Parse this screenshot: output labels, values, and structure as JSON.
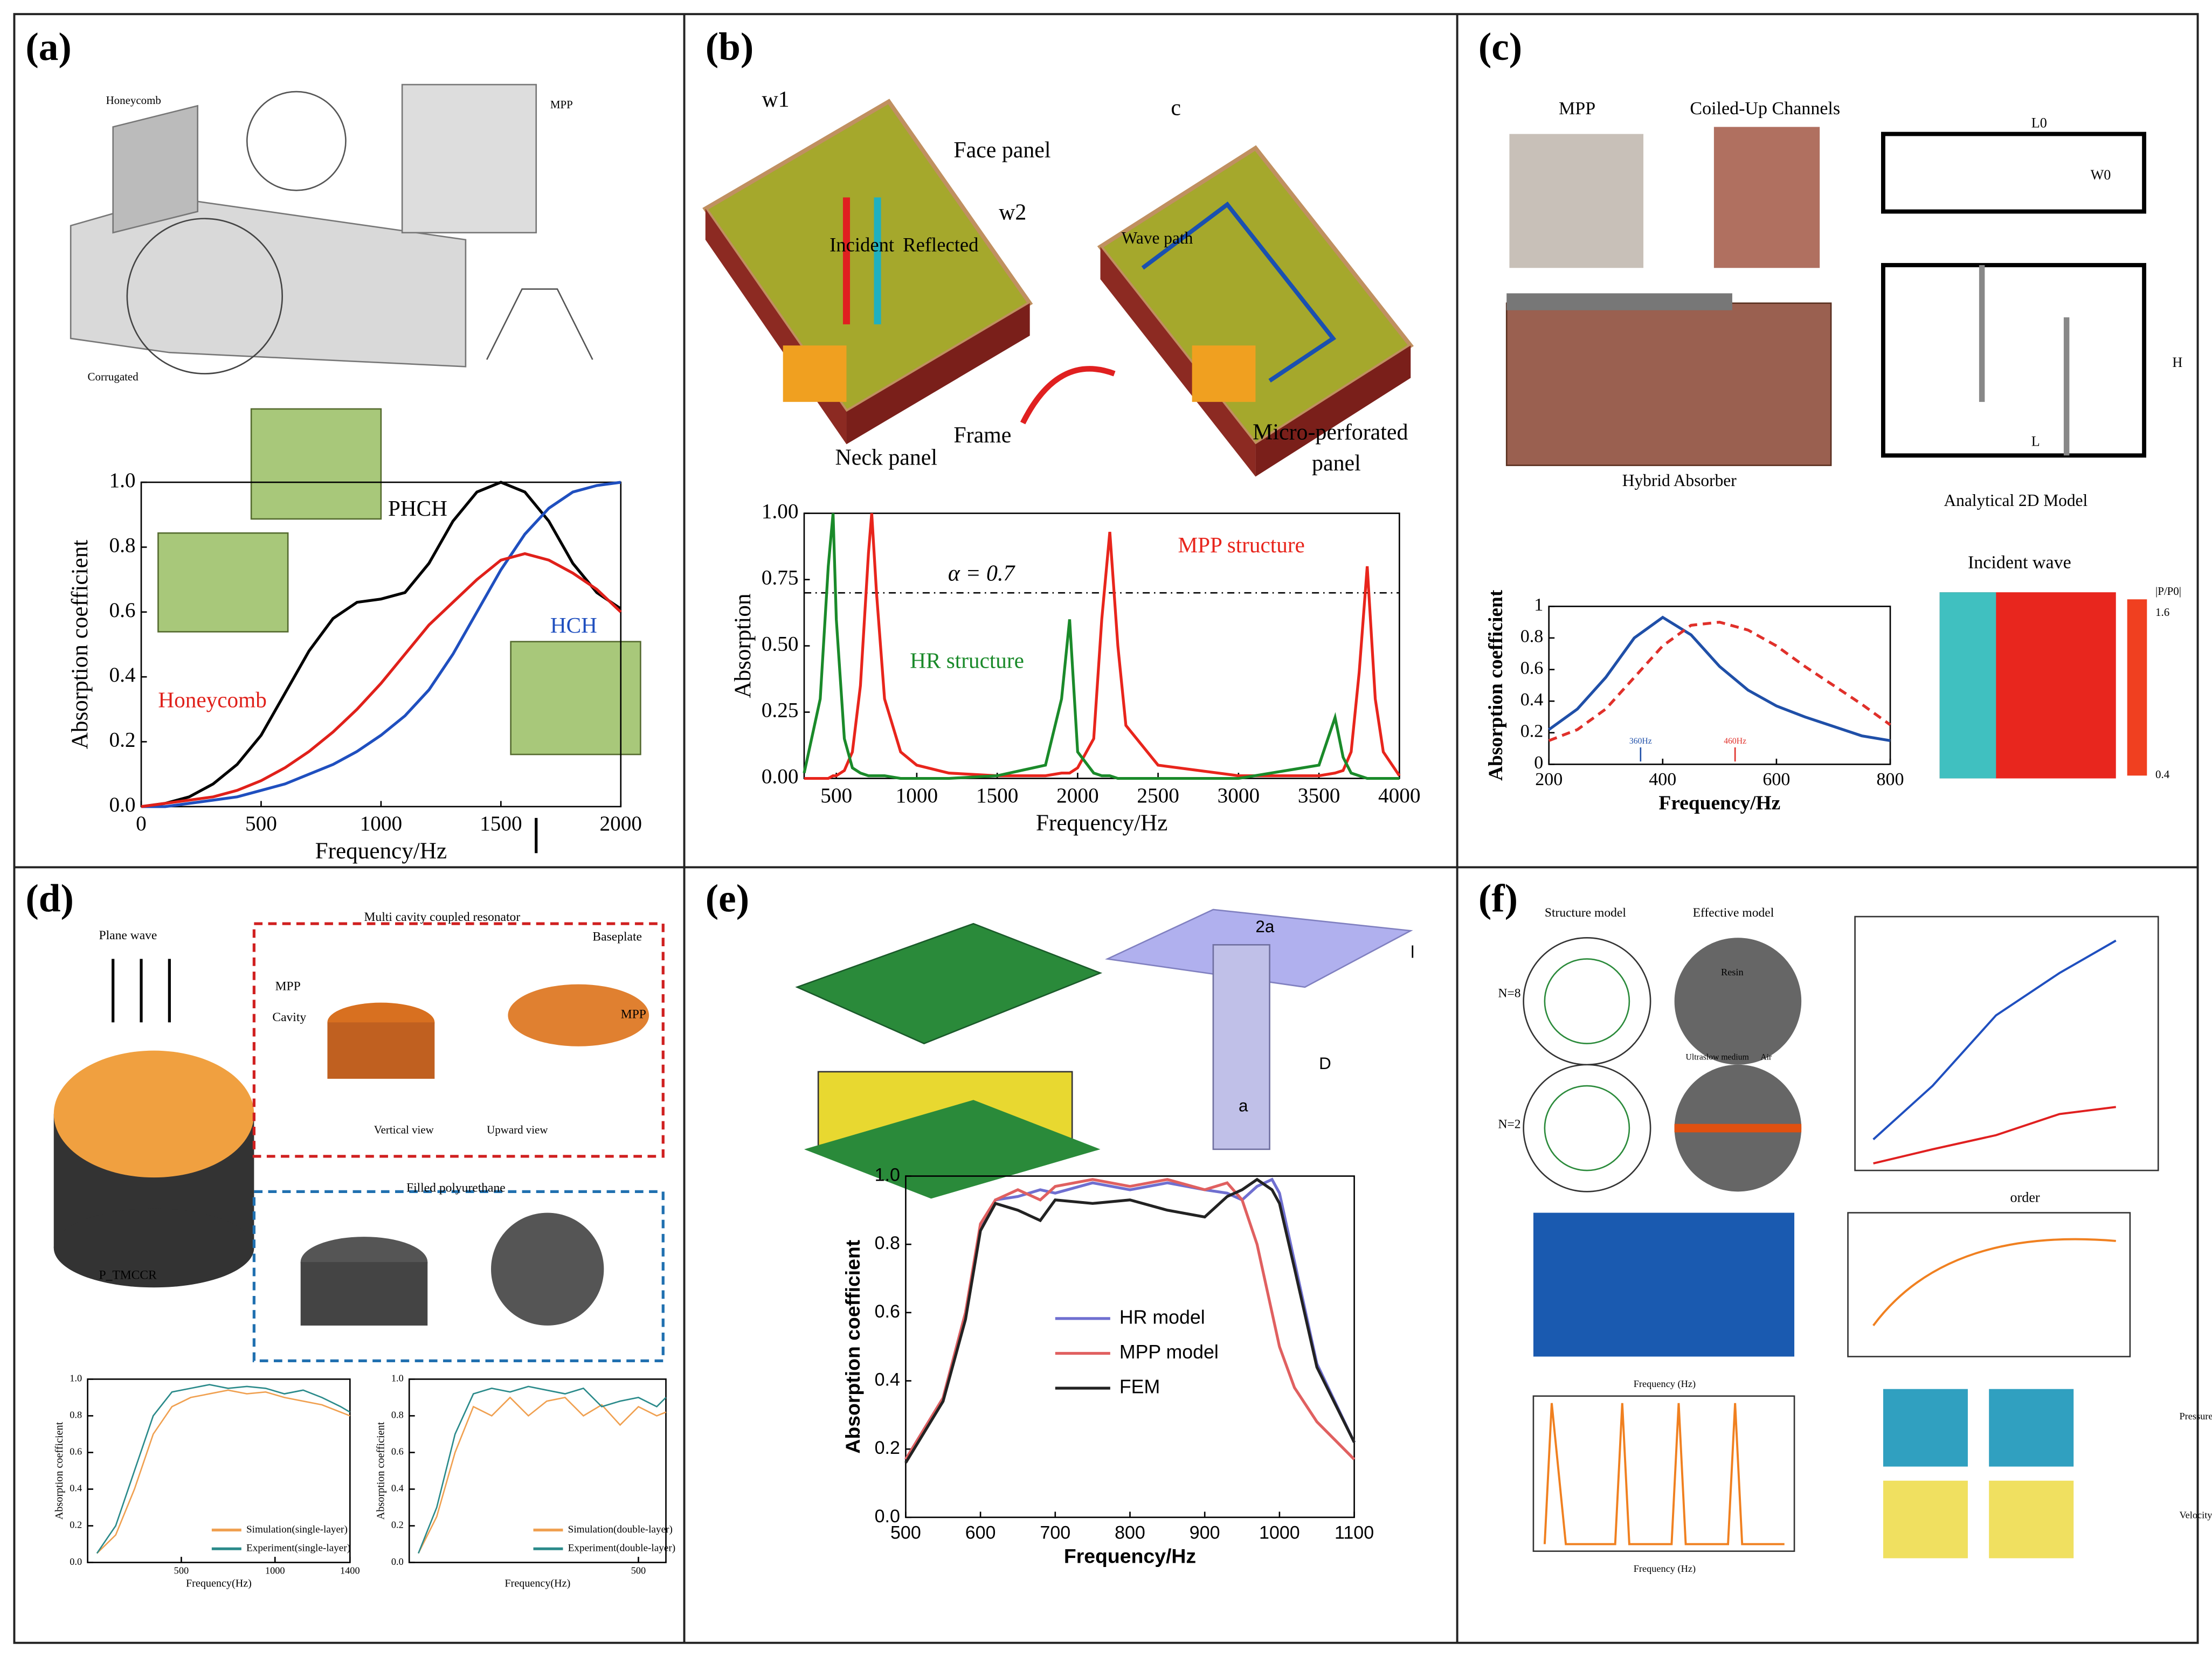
{
  "panels": [
    {
      "label": "(a)",
      "texts": [
        "Honeycomb",
        "MPP",
        "Corrugated"
      ]
    },
    {
      "label": "(b)",
      "texts": [
        "Face panel",
        "Incident",
        "Reflected",
        "Frame",
        "Neck panel",
        "Micro-perforated",
        "panel",
        "Wave path",
        "w1",
        "w2",
        "c"
      ]
    },
    {
      "label": "(c)",
      "texts": [
        "MPP",
        "Coiled-Up Channels",
        "Hybrid Absorber",
        "Analytical 2D Model",
        "Incident wave",
        "L0",
        "W0",
        "H",
        "L",
        "|P/P0|",
        "1.6",
        "0.4"
      ]
    },
    {
      "label": "(d)",
      "texts": [
        "Plane wave",
        "Multi cavity coupled resonator",
        "MPP",
        "Cavity",
        "Baseplate",
        "MPP",
        "Vertical view",
        "Upward view",
        "Filled polyurethane",
        "P_TMCCR"
      ]
    },
    {
      "label": "(e)",
      "texts": [
        "2a",
        "l",
        "D",
        "a"
      ]
    },
    {
      "label": "(f)",
      "texts": [
        "Structure model",
        "Effective model",
        "N=8",
        "N=2",
        "Resin",
        "Ultraslow medium",
        "Air",
        "order",
        "Frequency (Hz)",
        "Frequency (Hz)",
        "Pressure (a.u.)",
        "Velocity (a.u.)"
      ]
    }
  ],
  "chart_data": [
    {
      "type": "line",
      "xlabel": "Frequency/Hz",
      "ylabel": "Absorption coefficient",
      "xlim": [
        0,
        2000
      ],
      "xticks": [
        0,
        500,
        1000,
        1500,
        2000
      ],
      "ylim": [
        0,
        1
      ],
      "yticks": [
        {
          "value": 0,
          "label": "0.0"
        },
        {
          "value": 0.2,
          "label": "0.2"
        },
        {
          "value": 0.4,
          "label": "0.4"
        },
        {
          "value": 0.6,
          "label": "0.6"
        },
        {
          "value": 0.8,
          "label": "0.8"
        },
        {
          "value": 1,
          "label": "1.0"
        }
      ],
      "x": [
        0,
        100,
        200,
        300,
        400,
        500,
        600,
        700,
        800,
        900,
        1000,
        1100,
        1200,
        1300,
        1400,
        1500,
        1600,
        1700,
        1800,
        1900,
        2000
      ],
      "series": [
        {
          "name": "PHCH",
          "color": "#000000",
          "values": [
            0,
            0.01,
            0.03,
            0.07,
            0.13,
            0.22,
            0.35,
            0.48,
            0.58,
            0.63,
            0.64,
            0.66,
            0.75,
            0.88,
            0.97,
            1.0,
            0.97,
            0.88,
            0.75,
            0.66,
            0.61
          ]
        },
        {
          "name": "HCH",
          "color": "#1f4fbf",
          "values": [
            0,
            0,
            0.01,
            0.02,
            0.03,
            0.05,
            0.07,
            0.1,
            0.13,
            0.17,
            0.22,
            0.28,
            0.36,
            0.47,
            0.6,
            0.73,
            0.84,
            0.92,
            0.97,
            0.99,
            1.0
          ]
        },
        {
          "name": "Honeycomb",
          "color": "#e0201a",
          "values": [
            0,
            0.01,
            0.02,
            0.03,
            0.05,
            0.08,
            0.12,
            0.17,
            0.23,
            0.3,
            0.38,
            0.47,
            0.56,
            0.63,
            0.7,
            0.76,
            0.78,
            0.76,
            0.72,
            0.67,
            0.6
          ]
        }
      ]
    },
    {
      "type": "line",
      "xlabel": "Frequency/Hz",
      "ylabel": "Absorption",
      "xlim": [
        300,
        4000
      ],
      "xticks": [
        500,
        1000,
        1500,
        2000,
        2500,
        3000,
        3500,
        4000
      ],
      "ylim": [
        0,
        1
      ],
      "yticks": [
        {
          "value": 0,
          "label": "0.00"
        },
        {
          "value": 0.25,
          "label": "0.25"
        },
        {
          "value": 0.5,
          "label": "0.50"
        },
        {
          "value": 0.75,
          "label": "0.75"
        },
        {
          "value": 1,
          "label": "1.00"
        }
      ],
      "ref_line": 0.7,
      "annotation": "α = 0.7",
      "x": [
        300,
        400,
        450,
        480,
        500,
        550,
        600,
        650,
        700,
        720,
        750,
        800,
        900,
        1000,
        1200,
        1500,
        1800,
        1900,
        1950,
        2000,
        2100,
        2150,
        2200,
        2250,
        2300,
        2500,
        3000,
        3500,
        3600,
        3650,
        3700,
        3750,
        3800,
        3850,
        3900,
        4000
      ],
      "series": [
        {
          "name": "MPP structure",
          "color": "#e8251c",
          "values": [
            0,
            0,
            0,
            0.01,
            0.01,
            0.03,
            0.1,
            0.35,
            0.85,
            1.0,
            0.7,
            0.3,
            0.1,
            0.05,
            0.02,
            0.01,
            0.01,
            0.02,
            0.02,
            0.04,
            0.15,
            0.6,
            0.93,
            0.5,
            0.2,
            0.05,
            0.01,
            0.01,
            0.02,
            0.03,
            0.1,
            0.4,
            0.8,
            0.3,
            0.1,
            0.01
          ]
        },
        {
          "name": "HR structure",
          "color": "#1a8a2a",
          "values": [
            0.02,
            0.3,
            0.8,
            1.0,
            0.6,
            0.15,
            0.04,
            0.02,
            0.01,
            0.01,
            0.01,
            0.01,
            0,
            0,
            0,
            0.01,
            0.05,
            0.3,
            0.6,
            0.1,
            0.02,
            0.01,
            0.01,
            0,
            0,
            0,
            0,
            0.05,
            0.23,
            0.08,
            0.02,
            0.01,
            0,
            0,
            0,
            0
          ]
        }
      ]
    },
    {
      "type": "line",
      "xlabel": "Frequency/Hz",
      "ylabel": "Absorption coefficient",
      "xlim": [
        200,
        800
      ],
      "xticks": [
        200,
        400,
        600,
        800
      ],
      "ylim": [
        0,
        1
      ],
      "yticks": [
        0,
        0.2,
        0.4,
        0.6,
        0.8,
        1
      ],
      "annotations": [
        "360Hz",
        "460Hz"
      ],
      "x": [
        200,
        250,
        300,
        350,
        400,
        450,
        500,
        550,
        600,
        650,
        700,
        750,
        800
      ],
      "series": [
        {
          "color": "#1f4fa8",
          "values": [
            0.22,
            0.35,
            0.55,
            0.8,
            0.93,
            0.82,
            0.62,
            0.47,
            0.37,
            0.3,
            0.24,
            0.18,
            0.15
          ]
        },
        {
          "color": "#e0302a",
          "dash": true,
          "values": [
            0.15,
            0.22,
            0.35,
            0.55,
            0.75,
            0.88,
            0.9,
            0.85,
            0.75,
            0.62,
            0.5,
            0.38,
            0.25
          ]
        }
      ]
    },
    {
      "type": "line",
      "xlabel": "Frequency(Hz)",
      "ylabel": "Absorption coefficient",
      "xlim": [
        0,
        1400
      ],
      "xticks": [
        500,
        1000,
        1400
      ],
      "ylim": [
        0,
        1
      ],
      "yticks": [
        {
          "value": 0,
          "label": "0.0"
        },
        {
          "value": 0.2,
          "label": "0.2"
        },
        {
          "value": 0.4,
          "label": "0.4"
        },
        {
          "value": 0.6,
          "label": "0.6"
        },
        {
          "value": 0.8,
          "label": "0.8"
        },
        {
          "value": 1,
          "label": "1.0"
        }
      ],
      "x": [
        50,
        150,
        250,
        350,
        450,
        550,
        650,
        750,
        850,
        950,
        1050,
        1150,
        1250,
        1350,
        1400
      ],
      "series": [
        {
          "name": "Simulation(single-layer)",
          "color": "#f0a050",
          "values": [
            0.05,
            0.15,
            0.4,
            0.7,
            0.85,
            0.9,
            0.92,
            0.94,
            0.92,
            0.93,
            0.9,
            0.88,
            0.86,
            0.82,
            0.8
          ]
        },
        {
          "name": "Experiment(single-layer)",
          "color": "#2a8a8a",
          "values": [
            0.05,
            0.2,
            0.5,
            0.8,
            0.93,
            0.95,
            0.97,
            0.95,
            0.96,
            0.95,
            0.92,
            0.94,
            0.9,
            0.85,
            0.82
          ]
        }
      ]
    },
    {
      "type": "line",
      "xlabel": "Frequency(Hz)",
      "ylabel": "Absorption coefficient",
      "xlim": [
        0,
        560
      ],
      "xticks": [
        500
      ],
      "ylim": [
        0,
        1
      ],
      "yticks": [
        {
          "value": 0,
          "label": "0.0"
        },
        {
          "value": 0.2,
          "label": "0.2"
        },
        {
          "value": 0.4,
          "label": "0.4"
        },
        {
          "value": 0.6,
          "label": "0.6"
        },
        {
          "value": 0.8,
          "label": "0.8"
        },
        {
          "value": 1,
          "label": "1.0"
        }
      ],
      "x": [
        20,
        60,
        100,
        140,
        180,
        220,
        260,
        300,
        340,
        380,
        420,
        460,
        500,
        540,
        560
      ],
      "series": [
        {
          "name": "Simulation(double-layer)",
          "color": "#f0a050",
          "values": [
            0.05,
            0.25,
            0.6,
            0.85,
            0.8,
            0.9,
            0.8,
            0.88,
            0.9,
            0.8,
            0.86,
            0.75,
            0.85,
            0.8,
            0.82
          ]
        },
        {
          "name": "Experiment(double-layer)",
          "color": "#2a8a8a",
          "values": [
            0.05,
            0.3,
            0.7,
            0.92,
            0.95,
            0.93,
            0.96,
            0.94,
            0.92,
            0.95,
            0.85,
            0.88,
            0.9,
            0.85,
            0.9
          ]
        }
      ]
    },
    {
      "type": "line",
      "xlabel": "Frequency/Hz",
      "ylabel": "Absorption coefficient",
      "xlim": [
        500,
        1100
      ],
      "xticks": [
        500,
        600,
        700,
        800,
        900,
        1000,
        1100
      ],
      "ylim": [
        0,
        1
      ],
      "yticks": [
        {
          "value": 0,
          "label": "0.0"
        },
        {
          "value": 0.2,
          "label": "0.2"
        },
        {
          "value": 0.4,
          "label": "0.4"
        },
        {
          "value": 0.6,
          "label": "0.6"
        },
        {
          "value": 0.8,
          "label": "0.8"
        },
        {
          "value": 1,
          "label": "1.0"
        }
      ],
      "x": [
        500,
        550,
        580,
        600,
        620,
        650,
        680,
        700,
        750,
        800,
        850,
        900,
        930,
        950,
        970,
        990,
        1000,
        1020,
        1050,
        1100
      ],
      "series": [
        {
          "name": "HR model",
          "color": "#6f6fd0",
          "values": [
            0.17,
            0.35,
            0.6,
            0.85,
            0.93,
            0.94,
            0.96,
            0.95,
            0.98,
            0.96,
            0.98,
            0.96,
            0.95,
            0.93,
            0.97,
            0.99,
            0.95,
            0.75,
            0.45,
            0.22
          ]
        },
        {
          "name": "MPP model",
          "color": "#e06060",
          "values": [
            0.17,
            0.35,
            0.6,
            0.86,
            0.93,
            0.96,
            0.93,
            0.97,
            0.99,
            0.97,
            0.99,
            0.96,
            0.98,
            0.93,
            0.8,
            0.6,
            0.5,
            0.38,
            0.28,
            0.17
          ]
        },
        {
          "name": "FEM",
          "color": "#222222",
          "values": [
            0.16,
            0.34,
            0.58,
            0.84,
            0.92,
            0.9,
            0.87,
            0.93,
            0.92,
            0.93,
            0.9,
            0.88,
            0.94,
            0.96,
            0.99,
            0.96,
            0.92,
            0.73,
            0.44,
            0.22
          ]
        }
      ]
    }
  ]
}
